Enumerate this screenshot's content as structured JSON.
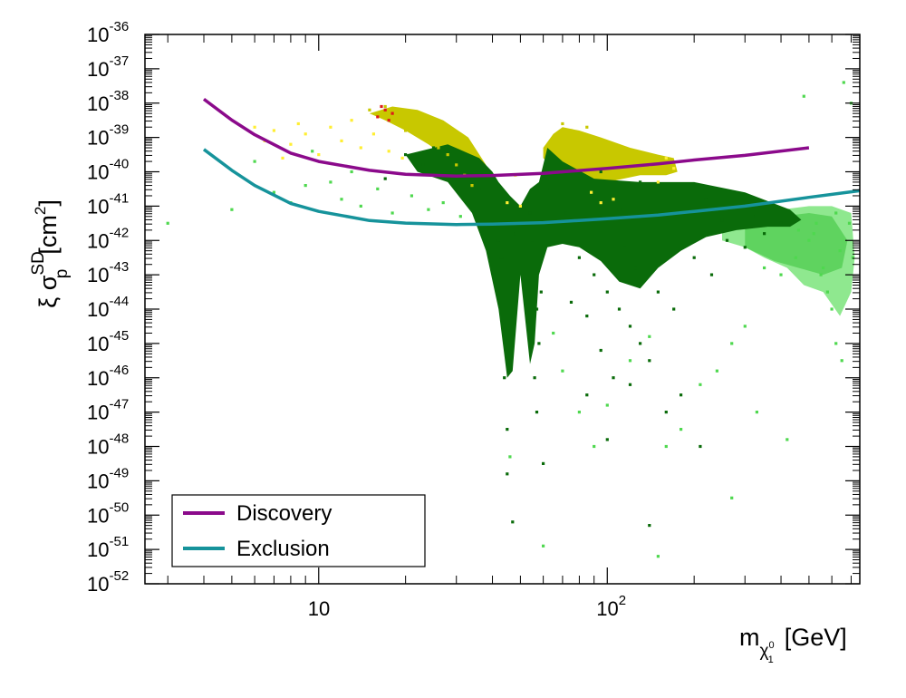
{
  "chart_data": {
    "type": "scatter",
    "xscale": "log",
    "yscale": "log",
    "xlim": [
      2.5,
      750
    ],
    "ylim": [
      1e-52,
      1e-36
    ],
    "xlabel": {
      "main": "m",
      "sub": "χ",
      "sub_sup": "0",
      "sub_sub": "1",
      "unit": "[GeV]"
    },
    "ylabel": {
      "main": "ξ σ",
      "sup": "SD",
      "sub": "p",
      "unit": "[cm",
      "unit_sup": "2",
      "unit_close": "]"
    },
    "x_ticks": [
      {
        "value": 10,
        "label": "10",
        "sup": ""
      },
      {
        "value": 100,
        "label": "10",
        "sup": "2"
      }
    ],
    "y_ticks": [
      {
        "value": -36,
        "base": "10",
        "sup": "-36"
      },
      {
        "value": -37,
        "base": "10",
        "sup": "-37"
      },
      {
        "value": -38,
        "base": "10",
        "sup": "-38"
      },
      {
        "value": -39,
        "base": "10",
        "sup": "-39"
      },
      {
        "value": -40,
        "base": "10",
        "sup": "-40"
      },
      {
        "value": -41,
        "base": "10",
        "sup": "-41"
      },
      {
        "value": -42,
        "base": "10",
        "sup": "-42"
      },
      {
        "value": -43,
        "base": "10",
        "sup": "-43"
      },
      {
        "value": -44,
        "base": "10",
        "sup": "-44"
      },
      {
        "value": -45,
        "base": "10",
        "sup": "-45"
      },
      {
        "value": -46,
        "base": "10",
        "sup": "-46"
      },
      {
        "value": -47,
        "base": "10",
        "sup": "-47"
      },
      {
        "value": -48,
        "base": "10",
        "sup": "-48"
      },
      {
        "value": -49,
        "base": "10",
        "sup": "-49"
      },
      {
        "value": -50,
        "base": "10",
        "sup": "-50"
      },
      {
        "value": -51,
        "base": "10",
        "sup": "-51"
      },
      {
        "value": -52,
        "base": "10",
        "sup": "-52"
      }
    ],
    "series": [
      {
        "name": "Discovery",
        "kind": "line",
        "color": "#8b0a8b",
        "x": [
          4,
          5,
          6,
          8,
          10,
          15,
          20,
          30,
          40,
          60,
          100,
          150,
          200,
          300,
          500
        ],
        "y": [
          1.3e-38,
          3.2e-39,
          1.2e-39,
          3.5e-40,
          2e-40,
          1.1e-40,
          8.5e-41,
          7.5e-41,
          7.8e-41,
          9e-41,
          1.25e-40,
          1.7e-40,
          2.2e-40,
          3e-40,
          5e-40
        ]
      },
      {
        "name": "Exclusion",
        "kind": "line",
        "color": "#16939b",
        "x": [
          4,
          5,
          6,
          8,
          10,
          15,
          20,
          30,
          40,
          60,
          100,
          150,
          200,
          300,
          500,
          750
        ],
        "y": [
          4.5e-40,
          1.1e-40,
          4e-41,
          1.2e-41,
          7e-42,
          3.8e-42,
          3.2e-42,
          2.9e-42,
          3e-42,
          3.3e-42,
          4.3e-42,
          5.5e-42,
          7e-42,
          1e-41,
          1.8e-41,
          2.8e-41
        ]
      }
    ],
    "scatter_groups": [
      {
        "color": "#0a6b0a",
        "points": [
          [
            42,
            -42
          ],
          [
            44,
            -43
          ],
          [
            45,
            -44.5
          ],
          [
            46,
            -45.5
          ],
          [
            43,
            -42.5
          ],
          [
            47,
            -43.5
          ],
          [
            44,
            -46
          ],
          [
            45,
            -47.5
          ],
          [
            48,
            -41.8
          ],
          [
            55,
            -42
          ],
          [
            56,
            -43
          ],
          [
            57,
            -44
          ],
          [
            58,
            -45
          ],
          [
            56,
            -46
          ],
          [
            57,
            -47
          ],
          [
            59,
            -43.5
          ],
          [
            60,
            -41.5
          ],
          [
            54,
            -41.2
          ],
          [
            70,
            -42
          ],
          [
            80,
            -42.5
          ],
          [
            90,
            -43
          ],
          [
            100,
            -43.5
          ],
          [
            110,
            -44
          ],
          [
            120,
            -44.5
          ],
          [
            130,
            -45
          ],
          [
            140,
            -45.5
          ],
          [
            75,
            -43.8
          ],
          [
            85,
            -44.2
          ],
          [
            95,
            -45.2
          ],
          [
            105,
            -46
          ],
          [
            115,
            -42.2
          ],
          [
            125,
            -42.8
          ],
          [
            150,
            -43.5
          ],
          [
            170,
            -44
          ],
          [
            200,
            -42.5
          ],
          [
            230,
            -43
          ],
          [
            260,
            -42
          ],
          [
            300,
            -42.2
          ],
          [
            350,
            -41.8
          ],
          [
            400,
            -41.5
          ],
          [
            180,
            -46.5
          ],
          [
            160,
            -47
          ],
          [
            65,
            -41.5
          ],
          [
            72,
            -41.2
          ],
          [
            88,
            -41
          ],
          [
            110,
            -41.1
          ],
          [
            140,
            -41.3
          ],
          [
            190,
            -41.2
          ],
          [
            250,
            -41.4
          ],
          [
            320,
            -41.3
          ],
          [
            17,
            -40.2
          ],
          [
            20,
            -39.5
          ],
          [
            23,
            -39.8
          ],
          [
            25,
            -39.3
          ],
          [
            28,
            -39.6
          ],
          [
            30,
            -40.2
          ],
          [
            33,
            -39.9
          ],
          [
            36,
            -40.5
          ],
          [
            38,
            -41
          ],
          [
            40,
            -41.5
          ],
          [
            62,
            -40.5
          ],
          [
            78,
            -40.2
          ],
          [
            95,
            -40
          ],
          [
            130,
            -40.3
          ],
          [
            165,
            -40.5
          ],
          [
            220,
            -40.8
          ],
          [
            47,
            -50.2
          ],
          [
            140,
            -50.3
          ],
          [
            100,
            -47.8
          ],
          [
            60,
            -48.5
          ],
          [
            45,
            -48.8
          ],
          [
            210,
            -48
          ],
          [
            85,
            -46.5
          ],
          [
            120,
            -46.2
          ]
        ]
      },
      {
        "color": "#4fd84f",
        "points": [
          [
            3,
            -41.5
          ],
          [
            5,
            -41.1
          ],
          [
            7,
            -40.6
          ],
          [
            8,
            -40.9
          ],
          [
            9,
            -40.4
          ],
          [
            11,
            -40.3
          ],
          [
            12,
            -40.8
          ],
          [
            14,
            -41
          ],
          [
            16,
            -40.5
          ],
          [
            18,
            -41.2
          ],
          [
            21,
            -40.7
          ],
          [
            24,
            -41.1
          ],
          [
            27,
            -40.9
          ],
          [
            31,
            -41.3
          ],
          [
            6,
            -39.7
          ],
          [
            9.5,
            -39.4
          ],
          [
            13,
            -40
          ],
          [
            500,
            -42
          ],
          [
            550,
            -43
          ],
          [
            600,
            -44
          ],
          [
            620,
            -45
          ],
          [
            650,
            -45.5
          ],
          [
            580,
            -43.5
          ],
          [
            520,
            -41.8
          ],
          [
            450,
            -42.5
          ],
          [
            400,
            -43
          ],
          [
            350,
            -42.8
          ],
          [
            300,
            -44.5
          ],
          [
            270,
            -45
          ],
          [
            240,
            -45.8
          ],
          [
            210,
            -46.2
          ],
          [
            180,
            -47.5
          ],
          [
            160,
            -48
          ],
          [
            140,
            -44.8
          ],
          [
            120,
            -45.5
          ],
          [
            100,
            -46.8
          ],
          [
            90,
            -48
          ],
          [
            80,
            -47
          ],
          [
            70,
            -45.8
          ],
          [
            65,
            -44.7
          ],
          [
            60,
            -50.9
          ],
          [
            46,
            -48.3
          ],
          [
            270,
            -49.5
          ],
          [
            150,
            -51.2
          ],
          [
            330,
            -47
          ],
          [
            420,
            -47.8
          ],
          [
            480,
            -37.8
          ],
          [
            660,
            -37.4
          ],
          [
            700,
            -38
          ],
          [
            560,
            -42.8
          ],
          [
            640,
            -42.3
          ],
          [
            690,
            -41.5
          ],
          [
            710,
            -42.5
          ],
          [
            620,
            -41.2
          ],
          [
            530,
            -41.5
          ],
          [
            460,
            -41.7
          ]
        ]
      },
      {
        "color": "#c8c800",
        "points": [
          [
            15,
            -38.2
          ],
          [
            16,
            -38.3
          ],
          [
            17,
            -38.1
          ],
          [
            18,
            -38.4
          ],
          [
            19,
            -38.6
          ],
          [
            20,
            -38.8
          ],
          [
            22,
            -38.9
          ],
          [
            24,
            -39.1
          ],
          [
            26,
            -39.3
          ],
          [
            28,
            -39.5
          ],
          [
            30,
            -39.8
          ],
          [
            32,
            -40.1
          ],
          [
            34,
            -40.4
          ],
          [
            70,
            -38.6
          ],
          [
            75,
            -38.8
          ],
          [
            80,
            -39.1
          ],
          [
            90,
            -39.4
          ],
          [
            100,
            -39.7
          ],
          [
            110,
            -39.9
          ],
          [
            120,
            -40.1
          ],
          [
            130,
            -39.5
          ],
          [
            85,
            -38.7
          ],
          [
            95,
            -39.2
          ]
        ]
      },
      {
        "color": "#ffee33",
        "points": [
          [
            6,
            -38.7
          ],
          [
            7,
            -38.8
          ],
          [
            8,
            -39.2
          ],
          [
            9,
            -38.9
          ],
          [
            10,
            -39.5
          ],
          [
            11,
            -38.7
          ],
          [
            12,
            -39.1
          ],
          [
            13,
            -38.5
          ],
          [
            14,
            -39.3
          ],
          [
            15.5,
            -38.9
          ],
          [
            17.5,
            -39.4
          ],
          [
            19.5,
            -39.6
          ],
          [
            8.5,
            -38.6
          ],
          [
            7.5,
            -39.6
          ],
          [
            6.5,
            -39.1
          ],
          [
            45,
            -40.9
          ],
          [
            50,
            -41
          ],
          [
            88,
            -40.6
          ],
          [
            95,
            -40.9
          ],
          [
            105,
            -40.8
          ],
          [
            140,
            -39.8
          ],
          [
            150,
            -40.3
          ],
          [
            160,
            -39.6
          ],
          [
            170,
            -39.9
          ],
          [
            48,
            -40.1
          ]
        ]
      },
      {
        "color": "#dd1a1a",
        "points": [
          [
            16.5,
            -38.1
          ],
          [
            17,
            -38.2
          ],
          [
            18,
            -38.3
          ],
          [
            17.5,
            -38.5
          ],
          [
            16,
            -38.4
          ]
        ]
      }
    ],
    "bands": [
      {
        "color": "#8fe88f",
        "x": [
          250,
          300,
          400,
          500,
          600,
          700,
          720,
          700,
          640,
          560,
          480,
          420,
          350,
          300,
          250
        ],
        "y": [
          -41.5,
          -41.3,
          -41.1,
          -41,
          -41,
          -41.2,
          -42.5,
          -43.5,
          -44.2,
          -43.5,
          -43.3,
          -42.8,
          -42.5,
          -42.2,
          -42
        ]
      },
      {
        "color": "#5fd35f",
        "x": [
          300,
          400,
          500,
          600,
          680,
          650,
          560,
          460,
          380,
          300
        ],
        "y": [
          -41.4,
          -41.3,
          -41.2,
          -41.3,
          -42,
          -42.8,
          -43,
          -42.8,
          -42.6,
          -42.2
        ]
      },
      {
        "color": "#c8c800",
        "x": [
          15,
          18,
          22,
          27,
          33,
          38,
          40,
          37,
          33,
          28,
          24,
          20,
          17,
          15
        ],
        "y": [
          -38.3,
          -38.1,
          -38.2,
          -38.5,
          -39,
          -39.8,
          -40.2,
          -40.4,
          -40,
          -39.6,
          -39.2,
          -38.8,
          -38.5,
          -38.3
        ]
      },
      {
        "color": "#c8c800",
        "x": [
          60,
          65,
          70,
          80,
          95,
          120,
          150,
          170,
          175,
          160,
          130,
          100,
          80,
          65,
          60
        ],
        "y": [
          -39.3,
          -38.9,
          -38.7,
          -38.8,
          -39,
          -39.3,
          -39.5,
          -39.6,
          -40,
          -40.1,
          -40.1,
          -40.3,
          -40.2,
          -39.9,
          -39.6
        ]
      },
      {
        "color": "#0a6b0a",
        "x": [
          20,
          28,
          36,
          40,
          42,
          46,
          50,
          54,
          58,
          62,
          70,
          90,
          130,
          200,
          300,
          430,
          470,
          430,
          360,
          280,
          220,
          180,
          150,
          130,
          110,
          95,
          80,
          70,
          62,
          58,
          56,
          54,
          50,
          47,
          45,
          42,
          38,
          34,
          28,
          22
        ],
        "y": [
          -39.5,
          -39.2,
          -39.6,
          -40,
          -40.3,
          -40.7,
          -41,
          -40.5,
          -40.3,
          -39.3,
          -39.7,
          -40.2,
          -40.3,
          -40.3,
          -40.6,
          -41.1,
          -41.4,
          -41.6,
          -41.6,
          -41.7,
          -41.9,
          -42.3,
          -42.8,
          -43.4,
          -43.2,
          -42.6,
          -42.2,
          -42.1,
          -42.2,
          -43,
          -45,
          -45.6,
          -43,
          -45.8,
          -46,
          -44,
          -42.3,
          -41.2,
          -40.3,
          -40
        ]
      }
    ]
  },
  "legend": {
    "entries": [
      {
        "label": "Discovery",
        "color": "#8b0a8b"
      },
      {
        "label": "Exclusion",
        "color": "#16939b"
      }
    ]
  }
}
